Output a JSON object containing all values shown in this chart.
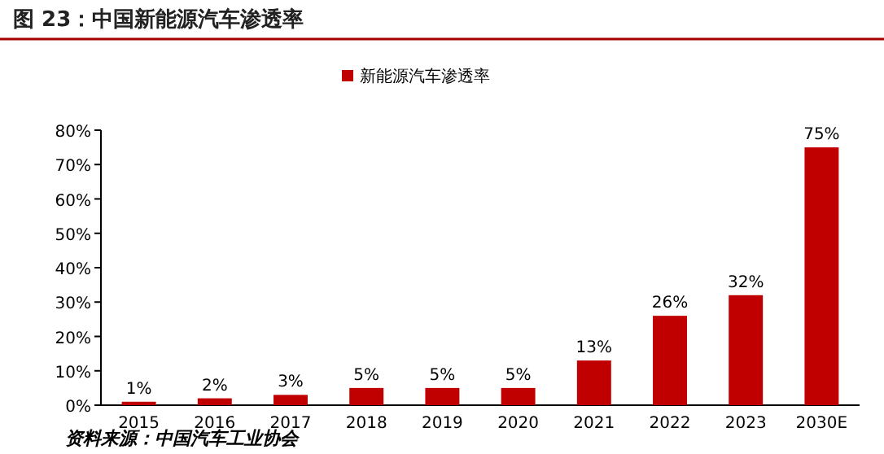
{
  "chart_data": {
    "type": "bar",
    "title": "图 23：中国新能源汽车渗透率",
    "categories": [
      "2015",
      "2016",
      "2017",
      "2018",
      "2019",
      "2020",
      "2021",
      "2022",
      "2023",
      "2030E"
    ],
    "series": [
      {
        "name": "新能源汽车渗透率",
        "color": "#c00000",
        "values": [
          1,
          2,
          3,
          5,
          5,
          5,
          13,
          26,
          32,
          75
        ],
        "value_labels": [
          "1%",
          "2%",
          "3%",
          "5%",
          "5%",
          "5%",
          "13%",
          "26%",
          "32%",
          "75%"
        ]
      }
    ],
    "ylim": [
      0,
      80
    ],
    "yticks": [
      {
        "value": 0,
        "label": "0%"
      },
      {
        "value": 10,
        "label": "10%"
      },
      {
        "value": 20,
        "label": "20%"
      },
      {
        "value": 30,
        "label": "30%"
      },
      {
        "value": 40,
        "label": "40%"
      },
      {
        "value": 50,
        "label": "50%"
      },
      {
        "value": 60,
        "label": "60%"
      },
      {
        "value": 70,
        "label": "70%"
      },
      {
        "value": 80,
        "label": "80%"
      }
    ],
    "legend": "top",
    "grid": false,
    "annotations": [
      "资料来源：中国汽车工业协会"
    ]
  }
}
